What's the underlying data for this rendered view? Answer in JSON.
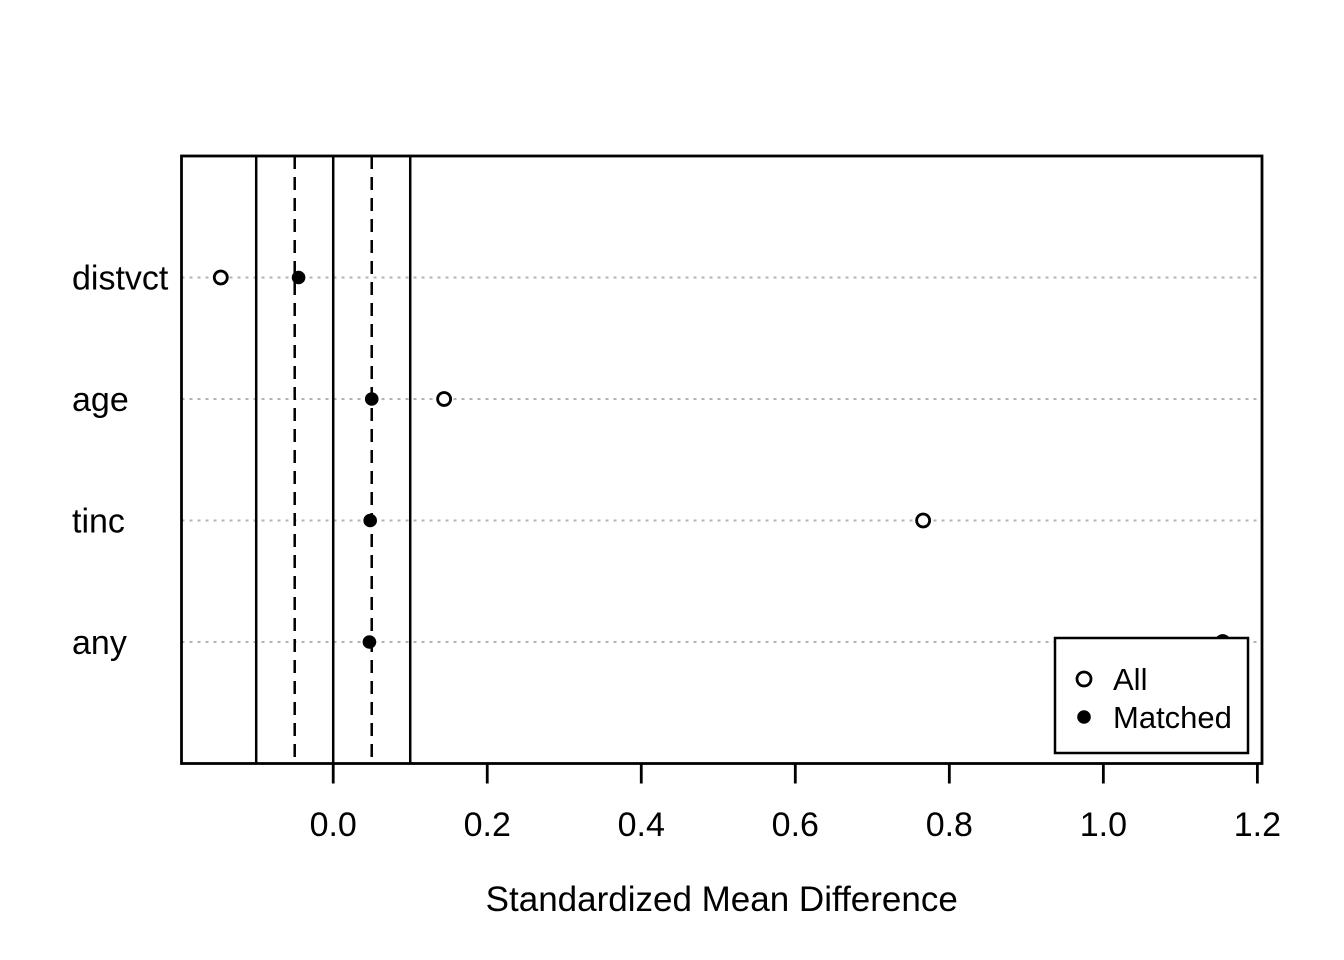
{
  "colors": {
    "background": "#ffffff",
    "foreground": "#000000",
    "gridline": "#b3b3b3"
  },
  "chart_data": {
    "type": "scatter",
    "subtype": "dot-plot-covariate-balance",
    "title": "",
    "xlabel": "Standardized Mean Difference",
    "ylabel": "",
    "categories": [
      "distvct",
      "age",
      "tinc",
      "any"
    ],
    "series": [
      {
        "name": "All",
        "marker": "open-circle",
        "values": [
          -0.146,
          0.144,
          0.766,
          1.155
        ]
      },
      {
        "name": "Matched",
        "marker": "filled-circle",
        "values": [
          -0.045,
          0.05,
          0.048,
          0.047
        ]
      }
    ],
    "xlim": [
      -0.197,
      1.206
    ],
    "xticks": [
      0.0,
      0.2,
      0.4,
      0.6,
      0.8,
      1.0,
      1.2
    ],
    "xtick_labels": [
      "0.0",
      "0.2",
      "0.4",
      "0.6",
      "0.8",
      "1.0",
      "1.2"
    ],
    "reference_lines": {
      "solid": [
        -0.1,
        0,
        0.1
      ],
      "dashed": [
        -0.05,
        0.05
      ]
    },
    "grid": "dotted horizontal line at each category row",
    "legend": {
      "position": "bottom-right-inside",
      "entries": [
        "All",
        "Matched"
      ]
    }
  }
}
